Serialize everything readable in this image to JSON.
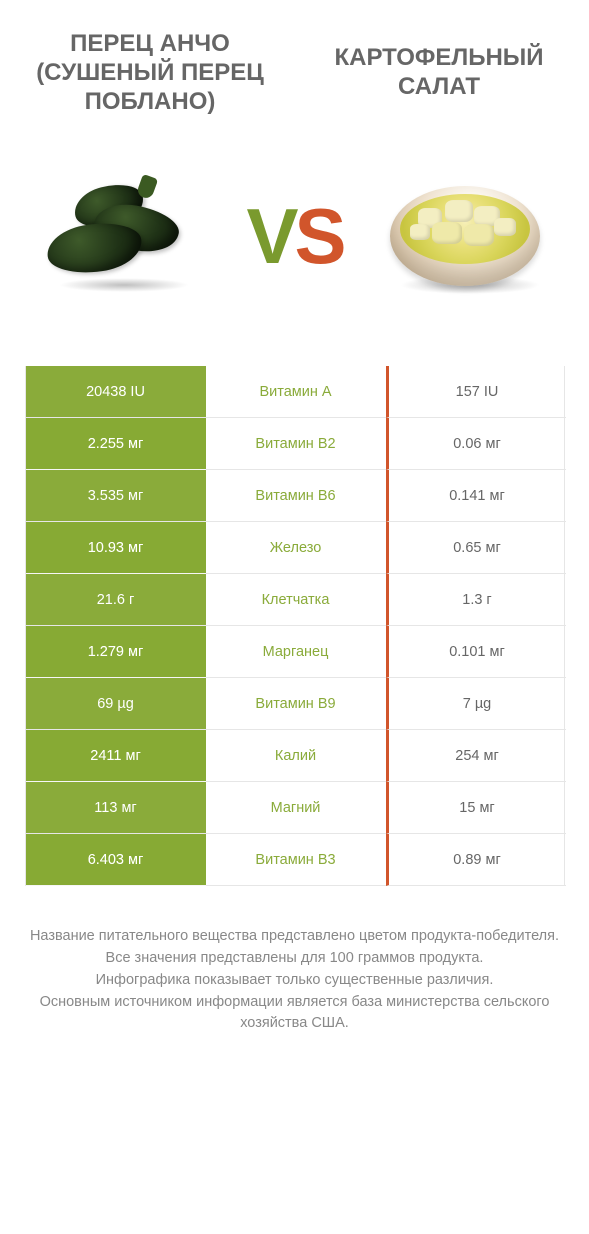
{
  "titles": {
    "left": "ПЕРЕЦ АНЧО (СУШЕНЫЙ ПЕРЕЦ ПОБЛАНО)",
    "right": "КАРТОФЕЛЬНЫЙ САЛАТ"
  },
  "vs": {
    "v": "V",
    "s": "S"
  },
  "colors": {
    "left_bg_a": "#8aab3a",
    "left_bg_b": "#7e9f31",
    "mid_text": "#8aab3a",
    "right_strip": "#d1552b",
    "right_text": "#666666"
  },
  "type": "table",
  "columns": [
    "left_value",
    "nutrient",
    "right_value"
  ],
  "rows": [
    {
      "left": "20438 IU",
      "name": "Витамин A",
      "right": "157 IU"
    },
    {
      "left": "2.255 мг",
      "name": "Витамин B2",
      "right": "0.06 мг"
    },
    {
      "left": "3.535 мг",
      "name": "Витамин B6",
      "right": "0.141 мг"
    },
    {
      "left": "10.93 мг",
      "name": "Железо",
      "right": "0.65 мг"
    },
    {
      "left": "21.6 г",
      "name": "Клетчатка",
      "right": "1.3 г"
    },
    {
      "left": "1.279 мг",
      "name": "Марганец",
      "right": "0.101 мг"
    },
    {
      "left": "69 µg",
      "name": "Витамин B9",
      "right": "7 µg"
    },
    {
      "left": "2411 мг",
      "name": "Калий",
      "right": "254 мг"
    },
    {
      "left": "113 мг",
      "name": "Магний",
      "right": "15 мг"
    },
    {
      "left": "6.403 мг",
      "name": "Витамин B3",
      "right": "0.89 мг"
    }
  ],
  "footer": {
    "l1": "Название питательного вещества представлено цветом продукта-победителя.",
    "l2": "Все значения представлены для 100 граммов продукта.",
    "l3": "Инфографика показывает только существенные различия.",
    "l4": "Основным источником информации является база министерства сельского хозяйства США."
  }
}
